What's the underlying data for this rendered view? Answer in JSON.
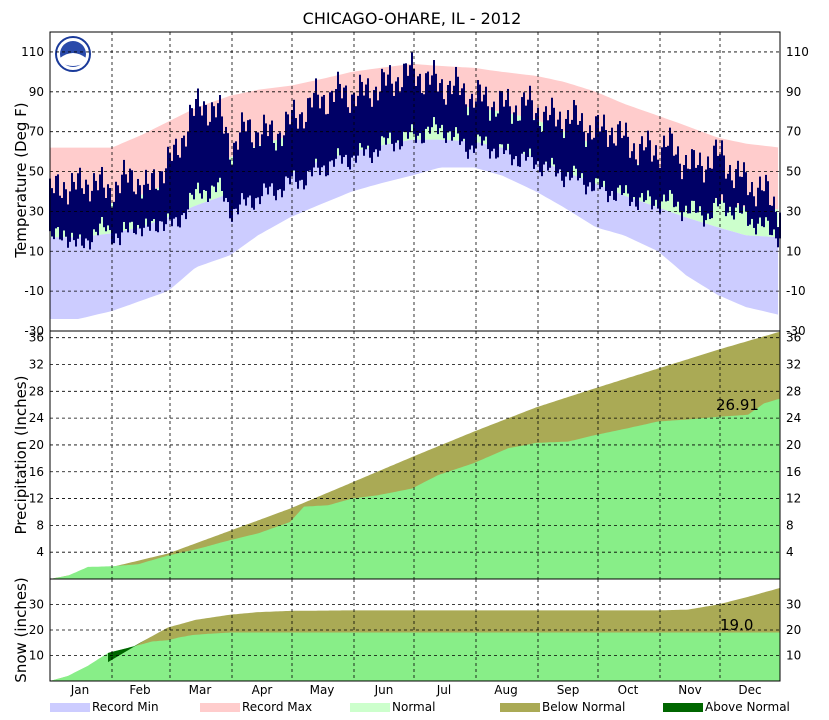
{
  "chart_data": {
    "type": "area",
    "title": "CHICAGO-OHARE, IL - 2012",
    "x_tick_labels": [
      "Jan",
      "Feb",
      "Mar",
      "Apr",
      "May",
      "Jun",
      "Jul",
      "Aug",
      "Sep",
      "Oct",
      "Nov",
      "Dec"
    ],
    "legend": [
      {
        "label": "Record Min",
        "color": "#ccccff"
      },
      {
        "label": "Record Max",
        "color": "#ffcccc"
      },
      {
        "label": "Normal",
        "color": "#ccffcc"
      },
      {
        "label": "Below Normal",
        "color": "#aaaa55"
      },
      {
        "label": "Above Normal",
        "color": "#006600"
      }
    ],
    "panels": [
      {
        "id": "temperature",
        "ylabel": "Temperature (Deg F)",
        "ylim": [
          -30,
          120
        ],
        "yticks": [
          -30,
          -10,
          10,
          30,
          50,
          70,
          90,
          110
        ],
        "series": [
          {
            "name": "Record Min",
            "color": "#ccccff",
            "x_day": [
              1,
              15,
              32,
              46,
              60,
              74,
              91,
              105,
              121,
              135,
              152,
              166,
              182,
              196,
              213,
              227,
              244,
              258,
              274,
              288,
              305,
              319,
              335,
              349,
              366
            ],
            "values": [
              -24,
              -24,
              -20,
              -15,
              -10,
              2,
              8,
              18,
              27,
              33,
              40,
              44,
              48,
              52,
              52,
              48,
              40,
              32,
              22,
              18,
              10,
              -2,
              -12,
              -18,
              -22
            ]
          },
          {
            "name": "Record Max",
            "color": "#ffcccc",
            "x_day": [
              1,
              15,
              32,
              46,
              60,
              74,
              91,
              105,
              121,
              135,
              152,
              166,
              182,
              196,
              213,
              227,
              244,
              258,
              274,
              288,
              305,
              319,
              335,
              349,
              366
            ],
            "values": [
              62,
              62,
              62,
              68,
              75,
              82,
              88,
              91,
              93,
              96,
              100,
              102,
              104,
              103,
              102,
              100,
              98,
              95,
              90,
              84,
              78,
              73,
              67,
              64,
              62
            ]
          },
          {
            "name": "Normal High",
            "color": "#ccffcc",
            "x_day": [
              1,
              15,
              32,
              46,
              60,
              74,
              91,
              105,
              121,
              135,
              152,
              166,
              182,
              196,
              213,
              227,
              244,
              258,
              274,
              288,
              305,
              319,
              335,
              349,
              366
            ],
            "values": [
              31,
              31,
              34,
              38,
              44,
              50,
              57,
              63,
              68,
              74,
              79,
              82,
              84,
              84,
              82,
              80,
              76,
              70,
              63,
              57,
              49,
              42,
              36,
              32,
              31
            ]
          },
          {
            "name": "Normal Low",
            "color": "#ccffcc",
            "x_day": [
              1,
              15,
              32,
              46,
              60,
              74,
              91,
              105,
              121,
              135,
              152,
              166,
              182,
              196,
              213,
              227,
              244,
              258,
              274,
              288,
              305,
              319,
              335,
              349,
              366
            ],
            "values": [
              17,
              17,
              19,
              22,
              27,
              33,
              39,
              44,
              49,
              55,
              60,
              63,
              66,
              66,
              65,
              62,
              57,
              50,
              44,
              38,
              32,
              27,
              22,
              18,
              17
            ]
          },
          {
            "name": "Observed",
            "color": "#000066",
            "x_day": [
              1,
              8,
              15,
              22,
              29,
              36,
              43,
              50,
              57,
              64,
              71,
              78,
              85,
              92,
              99,
              106,
              113,
              120,
              127,
              134,
              141,
              148,
              155,
              162,
              169,
              176,
              183,
              190,
              197,
              204,
              211,
              218,
              225,
              232,
              239,
              246,
              253,
              260,
              267,
              274,
              281,
              288,
              295,
              302,
              309,
              316,
              323,
              330,
              337,
              344,
              351,
              358,
              366
            ],
            "low": [
              15,
              20,
              12,
              18,
              22,
              16,
              24,
              20,
              26,
              22,
              36,
              40,
              42,
              30,
              34,
              38,
              40,
              44,
              46,
              50,
              54,
              56,
              58,
              60,
              64,
              66,
              68,
              70,
              72,
              66,
              62,
              64,
              60,
              58,
              56,
              54,
              50,
              48,
              46,
              42,
              40,
              38,
              36,
              34,
              36,
              32,
              30,
              28,
              34,
              30,
              26,
              22,
              18
            ],
            "high": [
              38,
              44,
              42,
              46,
              40,
              44,
              48,
              40,
              52,
              58,
              78,
              84,
              80,
              62,
              72,
              70,
              68,
              74,
              80,
              86,
              88,
              90,
              88,
              92,
              94,
              98,
              100,
              96,
              94,
              92,
              88,
              86,
              84,
              82,
              84,
              80,
              76,
              78,
              74,
              70,
              72,
              66,
              62,
              60,
              64,
              58,
              52,
              56,
              58,
              48,
              44,
              40,
              32
            ]
          }
        ]
      },
      {
        "id": "precipitation",
        "ylabel": "Precipitation (Inches)",
        "ylim": [
          0,
          37
        ],
        "yticks": [
          4,
          8,
          12,
          16,
          20,
          24,
          28,
          32,
          36
        ],
        "annotation": "26.91",
        "series": [
          {
            "name": "Normal",
            "color": "#aaaa55",
            "x_day": [
              1,
              32,
              60,
              91,
              121,
              152,
              182,
              213,
              244,
              274,
              305,
              335,
              366
            ],
            "values": [
              0,
              1.8,
              3.8,
              7.2,
              10.5,
              14.4,
              18.2,
              22.0,
              25.6,
              28.5,
              31.4,
              34.2,
              36.9
            ]
          },
          {
            "name": "Observed",
            "color": "#88ee88",
            "x_day": [
              1,
              10,
              20,
              32,
              45,
              60,
              75,
              91,
              105,
              121,
              128,
              140,
              152,
              165,
              182,
              195,
              213,
              230,
              244,
              260,
              274,
              290,
              305,
              320,
              335,
              350,
              358,
              366
            ],
            "values": [
              0,
              0.5,
              1.8,
              1.9,
              2.2,
              3.5,
              4.5,
              5.8,
              6.8,
              8.5,
              10.8,
              11.0,
              12.0,
              12.5,
              13.5,
              15.5,
              17.3,
              19.5,
              20.3,
              20.5,
              21.5,
              22.5,
              23.5,
              23.8,
              24.2,
              24.5,
              26.2,
              26.91
            ]
          }
        ]
      },
      {
        "id": "snow",
        "ylabel": "Snow (inches)",
        "ylim": [
          0,
          40
        ],
        "yticks": [
          10,
          20,
          30
        ],
        "annotation": "19.0",
        "series": [
          {
            "name": "Normal",
            "color": "#aaaa55",
            "x_day": [
              1,
              15,
              32,
              46,
              60,
              74,
              91,
              105,
              121,
              152,
              305,
              320,
              335,
              350,
              366
            ],
            "values": [
              0,
              3,
              8,
              15,
              21,
              24,
              26,
              27,
              27.5,
              27.7,
              27.7,
              28,
              30,
              33,
              36.5
            ]
          },
          {
            "name": "Observed",
            "color": "#88ee88",
            "x_day": [
              1,
              10,
              20,
              30,
              45,
              52,
              60,
              65,
              72,
              80,
              91,
              366
            ],
            "values": [
              0,
              2,
              6,
              11,
              14,
              15.5,
              16,
              17,
              18,
              18.5,
              19.0,
              19.0
            ]
          }
        ]
      }
    ]
  }
}
